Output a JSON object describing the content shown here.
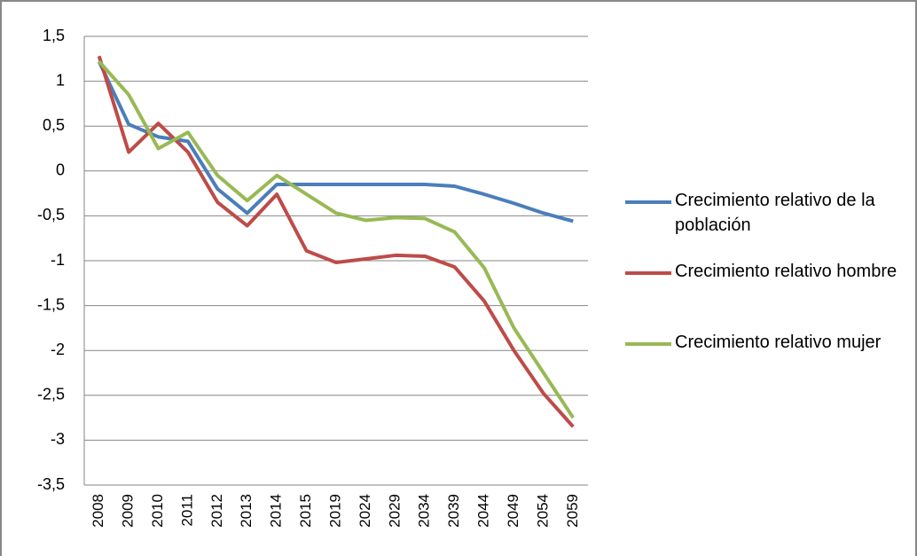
{
  "chart_data": {
    "type": "line",
    "categories": [
      "2008",
      "2009",
      "2010",
      "2011",
      "2012",
      "2013",
      "2014",
      "2015",
      "2019",
      "2024",
      "2029",
      "2034",
      "2039",
      "2044",
      "2049",
      "2054",
      "2059"
    ],
    "series": [
      {
        "name": "Crecimiento relativo de la población",
        "color": "#4a7ebb",
        "values": [
          1.22,
          0.52,
          0.38,
          0.33,
          -0.2,
          -0.47,
          -0.15,
          -0.15,
          -0.15,
          -0.15,
          -0.15,
          -0.15,
          -0.17,
          -0.26,
          -0.36,
          -0.47,
          -0.56
        ]
      },
      {
        "name": "Crecimiento relativo hombre",
        "color": "#be4b48",
        "values": [
          1.28,
          0.21,
          0.53,
          0.21,
          -0.35,
          -0.61,
          -0.26,
          -0.89,
          -1.02,
          -0.98,
          -0.94,
          -0.95,
          -1.07,
          -1.45,
          -2.0,
          -2.48,
          -2.85
        ]
      },
      {
        "name": "Crecimiento relativo mujer",
        "color": "#98b954",
        "values": [
          1.22,
          0.85,
          0.25,
          0.43,
          -0.05,
          -0.33,
          -0.05,
          -0.26,
          -0.47,
          -0.55,
          -0.52,
          -0.53,
          -0.68,
          -1.08,
          -1.75,
          -2.25,
          -2.75
        ]
      }
    ],
    "ylim": [
      -3.5,
      1.5
    ],
    "yticks": [
      {
        "value": 1.5,
        "label": "1,5"
      },
      1,
      {
        "value": 0.5,
        "label": "0,5"
      },
      0,
      {
        "value": -0.5,
        "label": "-0,5"
      },
      -1,
      {
        "value": -1.5,
        "label": "-1,5"
      },
      -2,
      {
        "value": -2.5,
        "label": "-2,5"
      },
      -3,
      {
        "value": -3.5,
        "label": "-3,5"
      }
    ],
    "grid": true,
    "legend": "right"
  }
}
